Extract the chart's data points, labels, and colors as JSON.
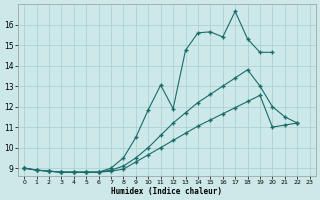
{
  "xlabel": "Humidex (Indice chaleur)",
  "bg_color": "#cce8e8",
  "grid_color": "#aacece",
  "line_color": "#1a6b6b",
  "xlim": [
    -0.5,
    23.5
  ],
  "ylim": [
    8.6,
    17.0
  ],
  "yticks": [
    9,
    10,
    11,
    12,
    13,
    14,
    15,
    16
  ],
  "xticks": [
    0,
    1,
    2,
    3,
    4,
    5,
    6,
    7,
    8,
    9,
    10,
    11,
    12,
    13,
    14,
    15,
    16,
    17,
    18,
    19,
    20,
    21,
    22,
    23
  ],
  "line1_x": [
    0,
    1,
    2,
    3,
    4,
    5,
    6,
    7,
    8,
    9,
    10,
    11,
    12,
    13,
    14,
    15,
    16,
    17,
    18,
    19,
    20
  ],
  "line1_y": [
    9.0,
    8.9,
    8.85,
    8.8,
    8.8,
    8.8,
    8.8,
    9.0,
    9.5,
    10.5,
    11.85,
    13.05,
    11.9,
    14.75,
    15.6,
    15.65,
    15.4,
    16.65,
    15.3,
    14.65,
    14.65
  ],
  "line2_x": [
    0,
    1,
    2,
    3,
    4,
    5,
    6,
    7,
    8,
    9,
    10,
    11,
    12,
    13,
    14,
    15,
    16,
    17,
    18,
    19,
    20,
    21,
    22
  ],
  "line2_y": [
    9.0,
    8.9,
    8.85,
    8.8,
    8.8,
    8.8,
    8.8,
    8.9,
    9.1,
    9.5,
    10.0,
    10.6,
    11.2,
    11.7,
    12.2,
    12.6,
    13.0,
    13.4,
    13.8,
    13.0,
    12.0,
    11.5,
    11.2
  ],
  "line3_x": [
    0,
    1,
    2,
    3,
    4,
    5,
    6,
    7,
    8,
    9,
    10,
    11,
    12,
    13,
    14,
    15,
    16,
    17,
    18,
    19,
    20,
    21,
    22
  ],
  "line3_y": [
    9.0,
    8.9,
    8.85,
    8.8,
    8.8,
    8.8,
    8.8,
    8.85,
    8.95,
    9.3,
    9.65,
    10.0,
    10.35,
    10.7,
    11.05,
    11.35,
    11.65,
    11.95,
    12.25,
    12.55,
    11.0,
    11.1,
    11.2
  ]
}
